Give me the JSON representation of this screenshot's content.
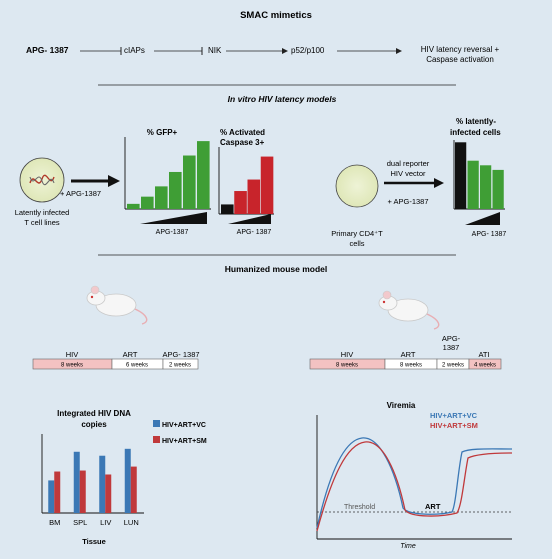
{
  "pathway": {
    "title": "SMAC mimetics",
    "nodes": [
      "APG- 1387",
      "cIAPs",
      "NIK",
      "p52/p100"
    ],
    "outcome_line1": "HIV latency reversal +",
    "outcome_line2": "Caspase activation"
  },
  "invitro": {
    "title": "In vitro HIV latency models",
    "cell_lines_line1": "Latently infected",
    "cell_lines_line2": "T cell lines",
    "treatment": "+ APG-1387",
    "gfp_title": "% GFP+",
    "casp_title_line1": "% Activated",
    "casp_title_line2": "Caspase 3+",
    "latent_title_line1": "% latently-",
    "latent_title_line2": "infected cells",
    "vector_line1": "dual reporter",
    "vector_line2": "HIV vector",
    "vector_treatment": "+ APG-1387",
    "primary_line1": "Primary CD4⁺T",
    "primary_line2": "cells",
    "dose_label": "APG-1387",
    "dose_label_spaced": "APG- 1387"
  },
  "mouse": {
    "title": "Humanized mouse model",
    "left_timeline": [
      {
        "phase": "HIV",
        "duration": "8 weeks",
        "color": "#f3c2c2"
      },
      {
        "phase": "ART",
        "duration": "6 weeks",
        "color": "#ffffff"
      },
      {
        "phase": "APG- 1387",
        "duration": "2 weeks",
        "color": "#ffffff"
      }
    ],
    "right_timeline": [
      {
        "phase": "HIV",
        "duration": "8 weeks",
        "color": "#f3c2c2"
      },
      {
        "phase": "ART",
        "duration": "8 weeks",
        "color": "#ffffff"
      },
      {
        "phase": "APG-\n1387",
        "duration": "2 weeks",
        "color": "#ffffff"
      },
      {
        "phase": "ATI",
        "duration": "4 weeks",
        "color": "#f3c2c2"
      }
    ]
  },
  "colors": {
    "gfp_green": "#3f9e35",
    "caspase_red": "#c8242b",
    "latent_black": "#111111",
    "vc_blue": "#3b78b5",
    "sm_red": "#c0393b",
    "pink": "#f3c2c2"
  },
  "chart_data": [
    {
      "type": "bar",
      "title": "% GFP+",
      "xlabel": "APG-1387",
      "values": [
        5,
        12,
        22,
        36,
        52,
        66
      ]
    },
    {
      "type": "bar",
      "title": "% Activated Caspase 3+",
      "xlabel": "APG- 1387",
      "values": [
        5,
        12,
        18,
        30
      ]
    },
    {
      "type": "bar",
      "title": "% latently-infected cells",
      "xlabel": "APG- 1387",
      "values": [
        58,
        42,
        38,
        34
      ]
    },
    {
      "type": "bar",
      "title": "Integrated HIV DNA copies",
      "xlabel": "Tissue",
      "categories": [
        "BM",
        "SPL",
        "LIV",
        "LUN"
      ],
      "series": [
        {
          "name": "HIV+ART+VC",
          "values": [
            33,
            62,
            58,
            65
          ]
        },
        {
          "name": "HIV+ART+SM",
          "values": [
            42,
            43,
            39,
            47
          ]
        }
      ],
      "ylim": [
        0,
        80
      ]
    },
    {
      "type": "line",
      "title": "Viremia",
      "xlabel": "Time",
      "series": [
        {
          "name": "HIV+ART+VC"
        },
        {
          "name": "HIV+ART+SM"
        }
      ],
      "annotations": [
        "Threshold",
        "ART"
      ]
    }
  ]
}
